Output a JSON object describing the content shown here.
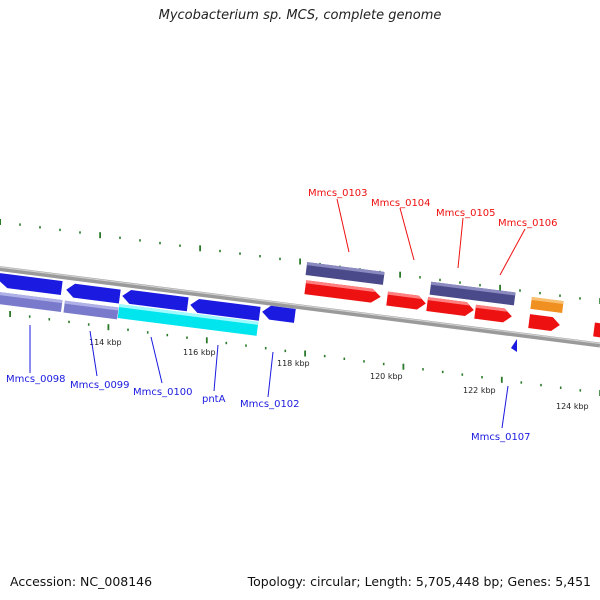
{
  "title": "Mycobacterium sp. MCS, complete genome",
  "footer": {
    "accession_label": "Accession:",
    "accession": "NC_008146",
    "summary": "Topology: circular; Length: 5,705,448 bp; Genes: 5,451"
  },
  "colors": {
    "forward": "#ee1111",
    "reverse": "#1a1ae0",
    "pseudo_band": "#4a4a8a",
    "highlight": "#00e5ee",
    "orange": "#f09020",
    "ticks": "#2a7a2a",
    "backbone": "#808080"
  },
  "scale": {
    "labels": [
      "114 kbp",
      "116 kbp",
      "118 kbp",
      "120 kbp",
      "122 kbp",
      "124 kbp"
    ]
  },
  "gene_labels": [
    {
      "name": "Mmcs_0098",
      "strand": "reverse"
    },
    {
      "name": "Mmcs_0099",
      "strand": "reverse"
    },
    {
      "name": "Mmcs_0100",
      "strand": "reverse"
    },
    {
      "name": "pntA",
      "strand": "reverse"
    },
    {
      "name": "Mmcs_0102",
      "strand": "reverse"
    },
    {
      "name": "Mmcs_0103",
      "strand": "forward"
    },
    {
      "name": "Mmcs_0104",
      "strand": "forward"
    },
    {
      "name": "Mmcs_0105",
      "strand": "forward"
    },
    {
      "name": "Mmcs_0106",
      "strand": "forward"
    },
    {
      "name": "Mmcs_0107",
      "strand": "reverse"
    }
  ]
}
